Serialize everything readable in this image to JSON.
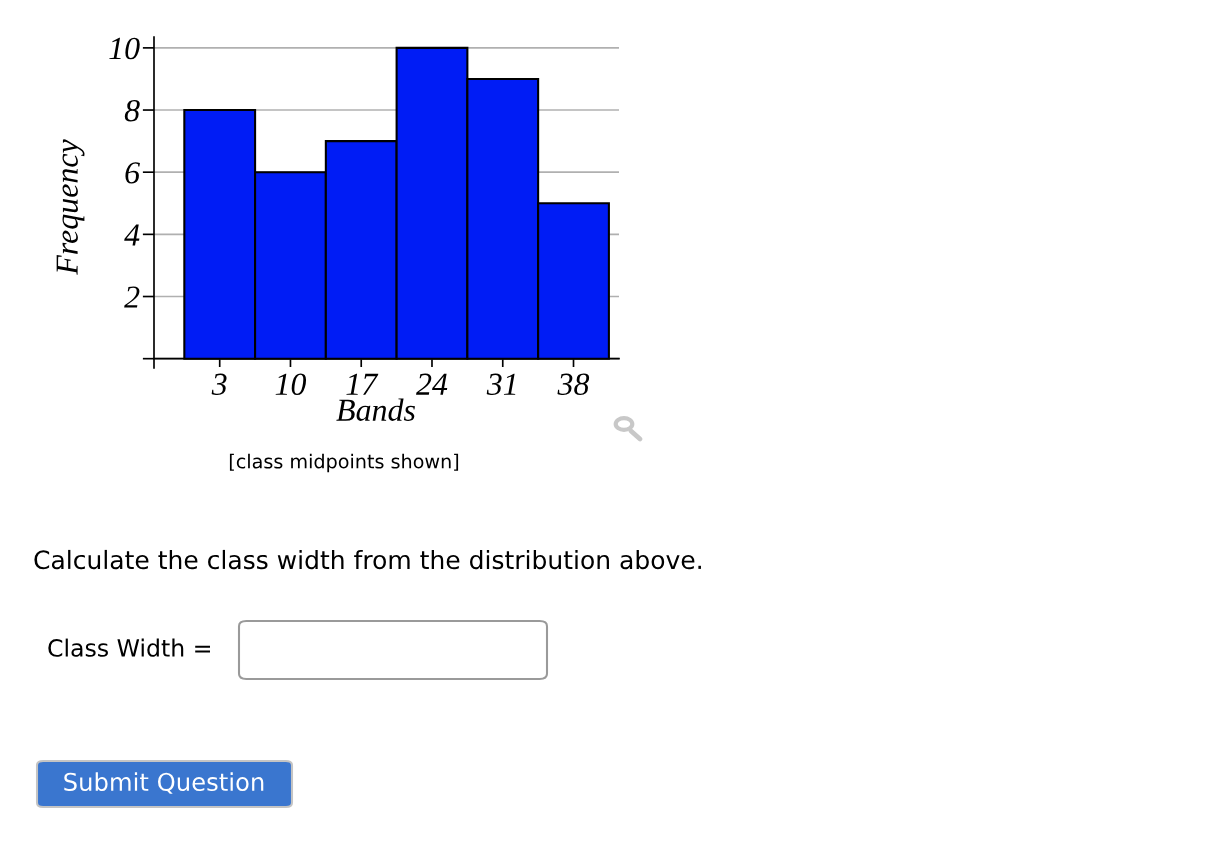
{
  "chart_data": {
    "type": "histogram",
    "xlabel": "Bands",
    "ylabel": "Frequency",
    "bins": [
      -0.5,
      6.5,
      13.5,
      20.5,
      27.5,
      34.5,
      41.5
    ],
    "values": [
      8,
      6,
      7,
      10,
      9,
      5
    ],
    "color": "#001cf5",
    "xlim": [
      -3.5,
      42.5
    ],
    "ylim": [
      -0.3,
      10.35
    ],
    "xticks": [
      3,
      10,
      17,
      24,
      31,
      38
    ],
    "yticks": [
      {
        "value": 0,
        "label": null
      },
      2,
      4,
      6,
      8,
      10
    ],
    "grid": "y",
    "annotations": [
      "[class midpoints shown]",
      "Calculate the class width from the distribution above.",
      "Class Width =",
      "Submit Question"
    ]
  }
}
